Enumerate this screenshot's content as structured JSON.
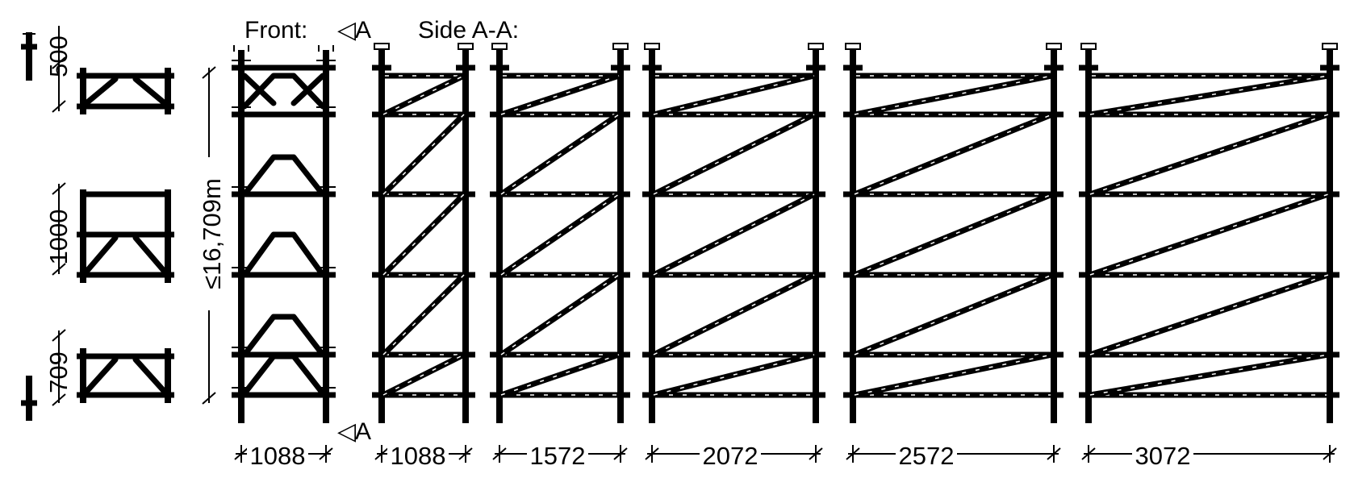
{
  "labels": {
    "front": "Front:",
    "section_mark_top": "A",
    "section_mark_bottom": "A",
    "side": "Side A-A:"
  },
  "dimensions": {
    "head_spacing": "500",
    "middle_spacing": "1000",
    "base_spacing": "709",
    "max_height": "≤16,709m",
    "front_width": "1088",
    "side_widths": [
      "1088",
      "1572",
      "2072",
      "2572",
      "3072"
    ]
  },
  "colors": {
    "ink": "#000000",
    "paper": "#ffffff"
  }
}
